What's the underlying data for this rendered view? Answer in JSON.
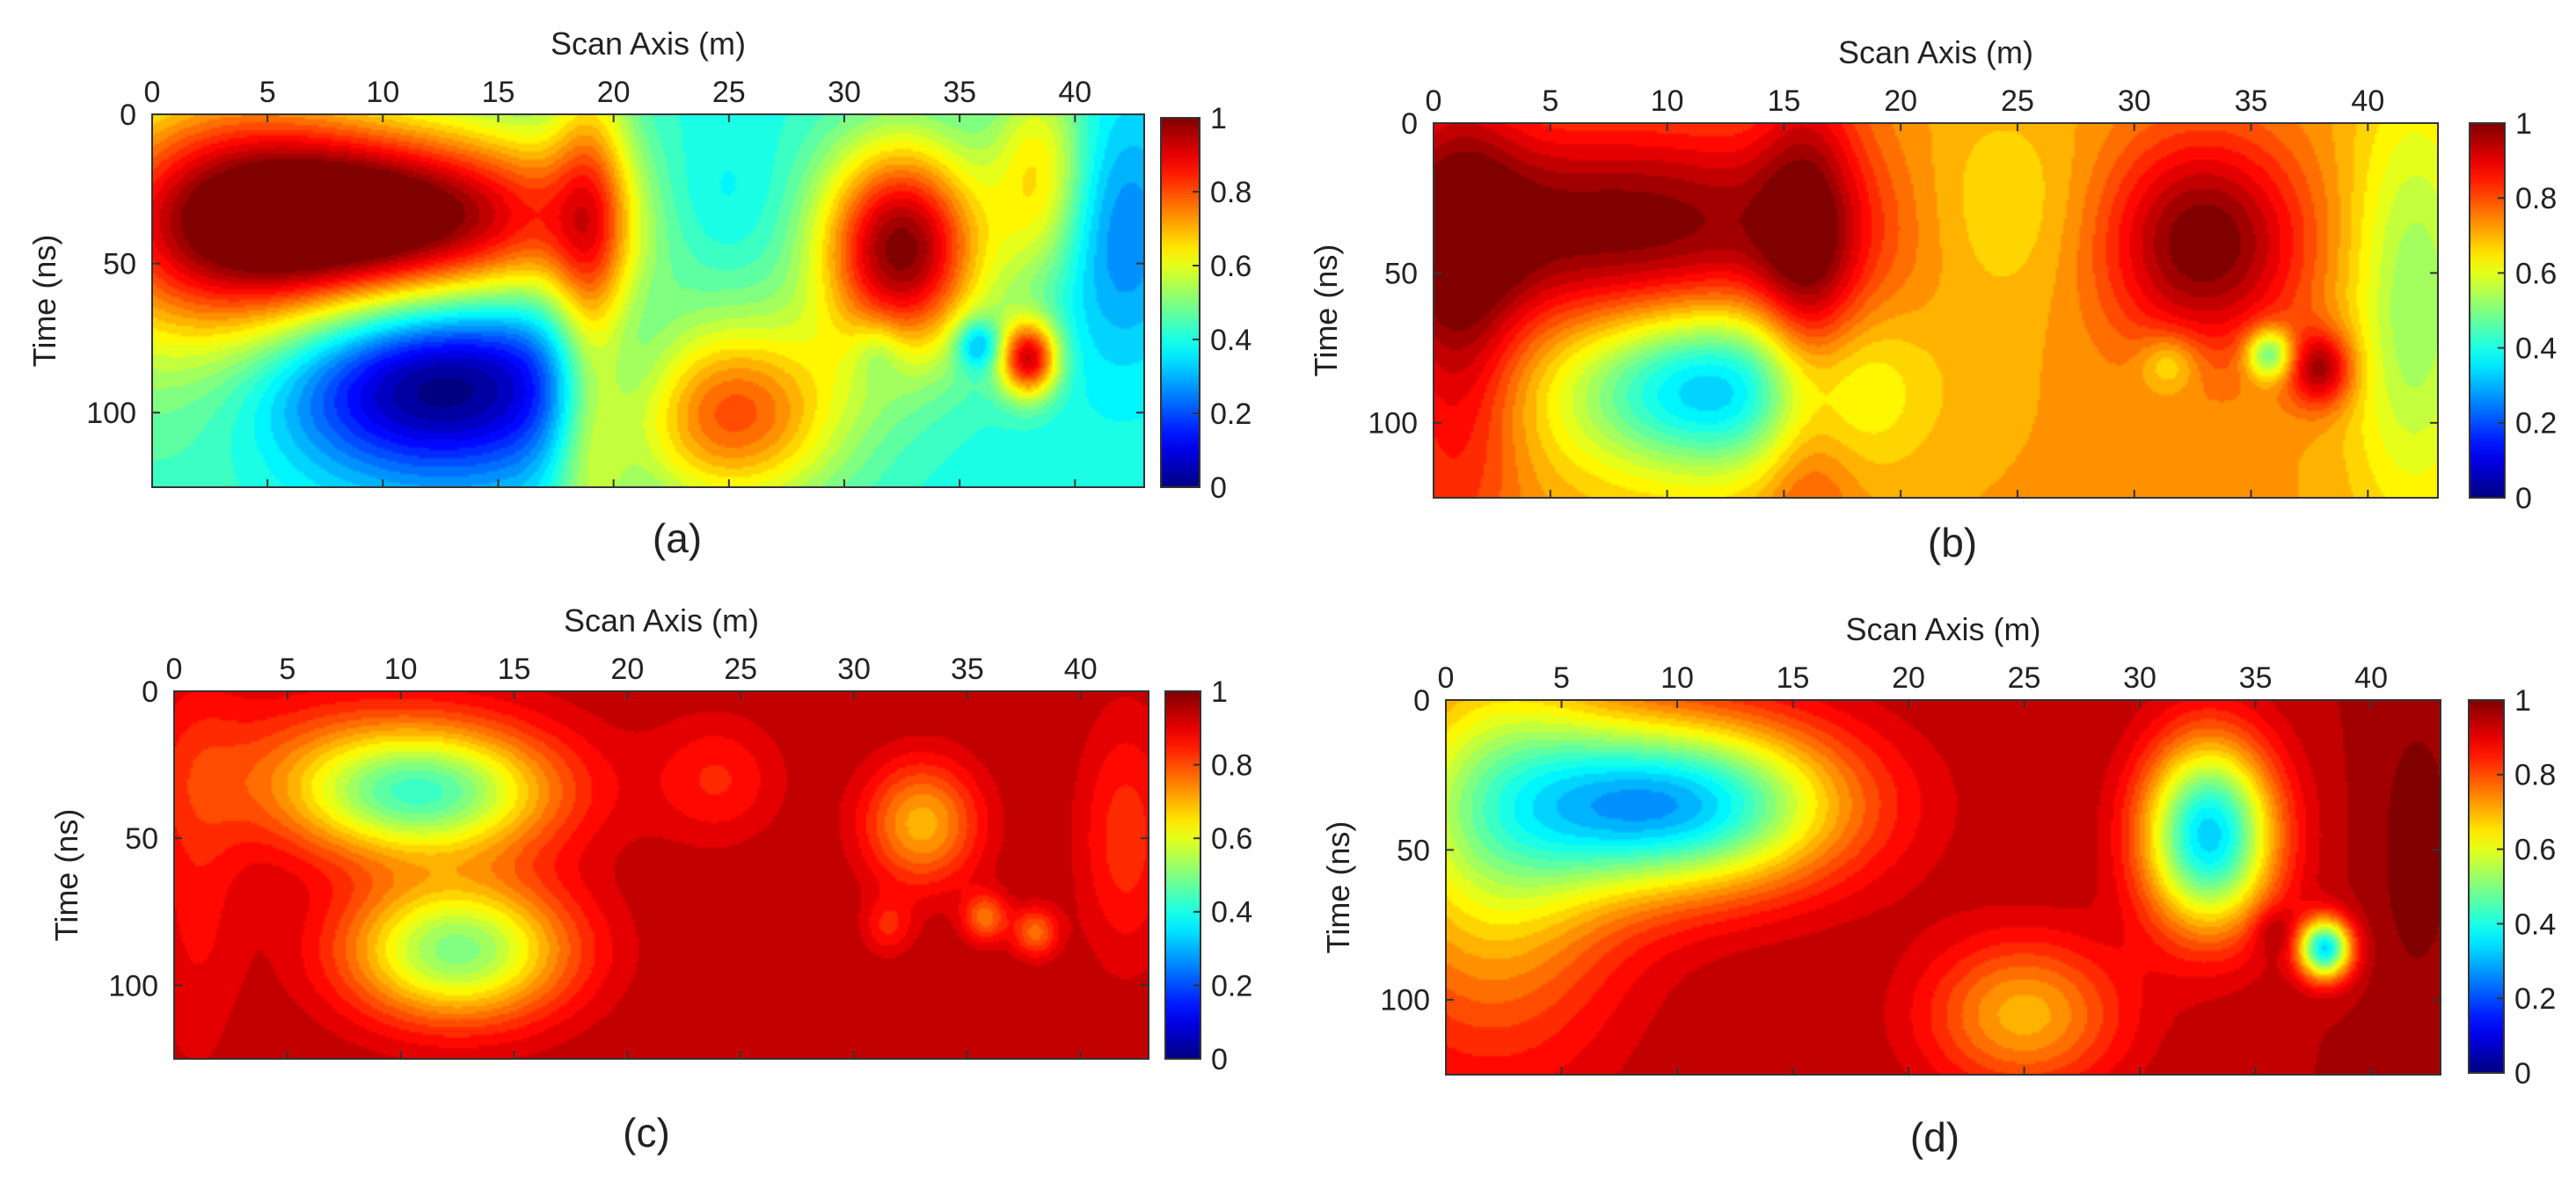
{
  "colors": {
    "colormap": "jet"
  },
  "panels": [
    {
      "caption": "(a)",
      "xlabel": "Scan Axis (m)",
      "ylabel": "Time (ns)"
    },
    {
      "caption": "(b)",
      "xlabel": "Scan Axis (m)",
      "ylabel": "Time (ns)"
    },
    {
      "caption": "(c)",
      "xlabel": "Scan Axis (m)",
      "ylabel": "Time (ns)"
    },
    {
      "caption": "(d)",
      "xlabel": "Scan Axis (m)",
      "ylabel": "Time (ns)"
    }
  ],
  "chart_data": [
    {
      "type": "heatmap",
      "title": "",
      "xlabel": "Scan Axis (m)",
      "ylabel": "Time (ns)",
      "xlim": [
        0,
        43
      ],
      "ylim": [
        125,
        0
      ],
      "xticks": [
        0,
        5,
        10,
        15,
        20,
        25,
        30,
        35,
        40
      ],
      "yticks": [
        0,
        50,
        100
      ],
      "x_axis_position": "top",
      "y_direction": "reversed",
      "colorbar": {
        "min": 0,
        "max": 1,
        "ticks": [
          0,
          0.2,
          0.4,
          0.6,
          0.8,
          1
        ],
        "colormap": "jet"
      },
      "background": 0.4,
      "blobs": [
        {
          "x": 10.5,
          "t": 35,
          "sx": 7,
          "st": 22,
          "a": 0.62
        },
        {
          "x": 3,
          "t": 40,
          "sx": 5,
          "st": 45,
          "a": 0.35
        },
        {
          "x": 12,
          "t": 90,
          "sx": 5.5,
          "st": 22,
          "a": -0.45
        },
        {
          "x": 24,
          "t": 30,
          "sx": 2.5,
          "st": 18,
          "a": -0.1
        },
        {
          "x": 25,
          "t": 100,
          "sx": 3.5,
          "st": 22,
          "a": 0.42
        },
        {
          "x": 19,
          "t": 60,
          "sx": 1.2,
          "st": 70,
          "a": 0.25
        },
        {
          "x": 32.5,
          "t": 45,
          "sx": 2.5,
          "st": 25,
          "a": 0.6
        },
        {
          "x": 31.5,
          "t": 80,
          "sx": 0.8,
          "st": 8,
          "a": -0.1
        },
        {
          "x": 35.8,
          "t": 77,
          "sx": 0.7,
          "st": 6,
          "a": -0.22
        },
        {
          "x": 38,
          "t": 82,
          "sx": 0.9,
          "st": 9,
          "a": 0.5
        },
        {
          "x": 42,
          "t": 40,
          "sx": 2,
          "st": 30,
          "a": -0.15
        },
        {
          "x": 38.5,
          "t": 20,
          "sx": 1.5,
          "st": 25,
          "a": 0.25
        }
      ]
    },
    {
      "type": "heatmap",
      "title": "",
      "xlabel": "Scan Axis (m)",
      "ylabel": "Time (ns)",
      "xlim": [
        0,
        43
      ],
      "ylim": [
        125,
        0
      ],
      "xticks": [
        0,
        5,
        10,
        15,
        20,
        25,
        30,
        35,
        40
      ],
      "yticks": [
        0,
        50,
        100
      ],
      "x_axis_position": "top",
      "y_direction": "reversed",
      "colorbar": {
        "min": 0,
        "max": 1,
        "ticks": [
          0,
          0.2,
          0.4,
          0.6,
          0.8,
          1
        ],
        "colormap": "jet"
      },
      "background": 0.72,
      "blobs": [
        {
          "x": 8,
          "t": 35,
          "sx": 8,
          "st": 25,
          "a": 0.3
        },
        {
          "x": 12,
          "t": 88,
          "sx": 4.5,
          "st": 20,
          "a": -0.42
        },
        {
          "x": 1,
          "t": 60,
          "sx": 2,
          "st": 60,
          "a": 0.2
        },
        {
          "x": 16,
          "t": 60,
          "sx": 1.5,
          "st": 60,
          "a": 0.2
        },
        {
          "x": 24,
          "t": 30,
          "sx": 3,
          "st": 25,
          "a": -0.1
        },
        {
          "x": 33,
          "t": 40,
          "sx": 3,
          "st": 25,
          "a": 0.3
        },
        {
          "x": 31.5,
          "t": 80,
          "sx": 0.9,
          "st": 7,
          "a": -0.12
        },
        {
          "x": 35.8,
          "t": 77,
          "sx": 0.7,
          "st": 6,
          "a": -0.3
        },
        {
          "x": 38,
          "t": 82,
          "sx": 1,
          "st": 9,
          "a": 0.25
        },
        {
          "x": 42,
          "t": 60,
          "sx": 2,
          "st": 50,
          "a": -0.2
        }
      ]
    },
    {
      "type": "heatmap",
      "title": "",
      "xlabel": "Scan Axis (m)",
      "ylabel": "Time (ns)",
      "xlim": [
        0,
        43
      ],
      "ylim": [
        125,
        0
      ],
      "xticks": [
        0,
        5,
        10,
        15,
        20,
        25,
        30,
        35,
        40
      ],
      "yticks": [
        0,
        50,
        100
      ],
      "x_axis_position": "top",
      "y_direction": "reversed",
      "colorbar": {
        "min": 0,
        "max": 1,
        "ticks": [
          0,
          0.2,
          0.4,
          0.6,
          0.8,
          1
        ],
        "colormap": "jet"
      },
      "background": 0.95,
      "blobs": [
        {
          "x": 11,
          "t": 35,
          "sx": 4,
          "st": 15,
          "a": -0.42
        },
        {
          "x": 12.5,
          "t": 88,
          "sx": 3.5,
          "st": 17,
          "a": -0.45
        },
        {
          "x": 8,
          "t": 25,
          "sx": 6,
          "st": 20,
          "a": -0.12
        },
        {
          "x": 24,
          "t": 30,
          "sx": 2,
          "st": 15,
          "a": -0.1
        },
        {
          "x": 33,
          "t": 45,
          "sx": 1.8,
          "st": 15,
          "a": -0.25
        },
        {
          "x": 31.5,
          "t": 80,
          "sx": 0.8,
          "st": 7,
          "a": -0.1
        },
        {
          "x": 35.8,
          "t": 77,
          "sx": 0.7,
          "st": 6,
          "a": -0.18
        },
        {
          "x": 38,
          "t": 82,
          "sx": 0.7,
          "st": 6,
          "a": -0.18
        },
        {
          "x": 42,
          "t": 50,
          "sx": 1.5,
          "st": 30,
          "a": -0.12
        },
        {
          "x": 1,
          "t": 60,
          "sx": 1.5,
          "st": 50,
          "a": -0.08
        }
      ]
    },
    {
      "type": "heatmap",
      "title": "",
      "xlabel": "Scan Axis (m)",
      "ylabel": "Time (ns)",
      "xlim": [
        0,
        43
      ],
      "ylim": [
        125,
        0
      ],
      "xticks": [
        0,
        5,
        10,
        15,
        20,
        25,
        30,
        35,
        40
      ],
      "yticks": [
        0,
        50,
        100
      ],
      "x_axis_position": "top",
      "y_direction": "reversed",
      "colorbar": {
        "min": 0,
        "max": 1,
        "ticks": [
          0,
          0.2,
          0.4,
          0.6,
          0.8,
          1
        ],
        "colormap": "jet"
      },
      "background": 0.95,
      "blobs": [
        {
          "x": 10,
          "t": 35,
          "sx": 5,
          "st": 20,
          "a": -0.62
        },
        {
          "x": 2,
          "t": 40,
          "sx": 4,
          "st": 50,
          "a": -0.35
        },
        {
          "x": 33,
          "t": 45,
          "sx": 2,
          "st": 22,
          "a": -0.62
        },
        {
          "x": 25,
          "t": 105,
          "sx": 3,
          "st": 18,
          "a": -0.25
        },
        {
          "x": 38,
          "t": 83,
          "sx": 0.8,
          "st": 7,
          "a": -0.6
        },
        {
          "x": 35.8,
          "t": 77,
          "sx": 0.7,
          "st": 6,
          "a": 0.08
        },
        {
          "x": 42,
          "t": 50,
          "sx": 1.5,
          "st": 40,
          "a": 0.05
        }
      ]
    }
  ]
}
